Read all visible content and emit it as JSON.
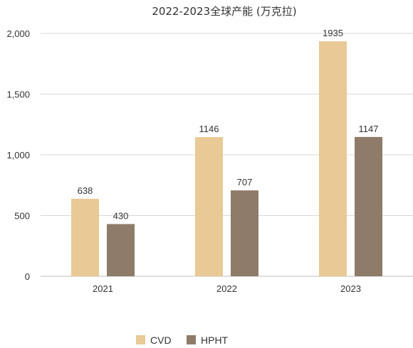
{
  "chart_data": {
    "type": "bar",
    "title": "2022-2023全球产能 (万克拉)",
    "xlabel": "",
    "ylabel": "",
    "categories": [
      "2021",
      "2022",
      "2023"
    ],
    "series": [
      {
        "name": "CVD",
        "values": [
          638,
          1146,
          1935
        ],
        "color": "#e9c995"
      },
      {
        "name": "HPHT",
        "values": [
          430,
          707,
          1147
        ],
        "color": "#8e7b69"
      }
    ],
    "ylim": [
      0,
      2000
    ],
    "yticks": [
      0,
      500,
      1000,
      1500,
      2000
    ],
    "ytick_labels": [
      "0",
      "500",
      "1,000",
      "1,500",
      "2,000"
    ],
    "grid": true,
    "legend_position": "bottom-center",
    "data_labels": true
  }
}
